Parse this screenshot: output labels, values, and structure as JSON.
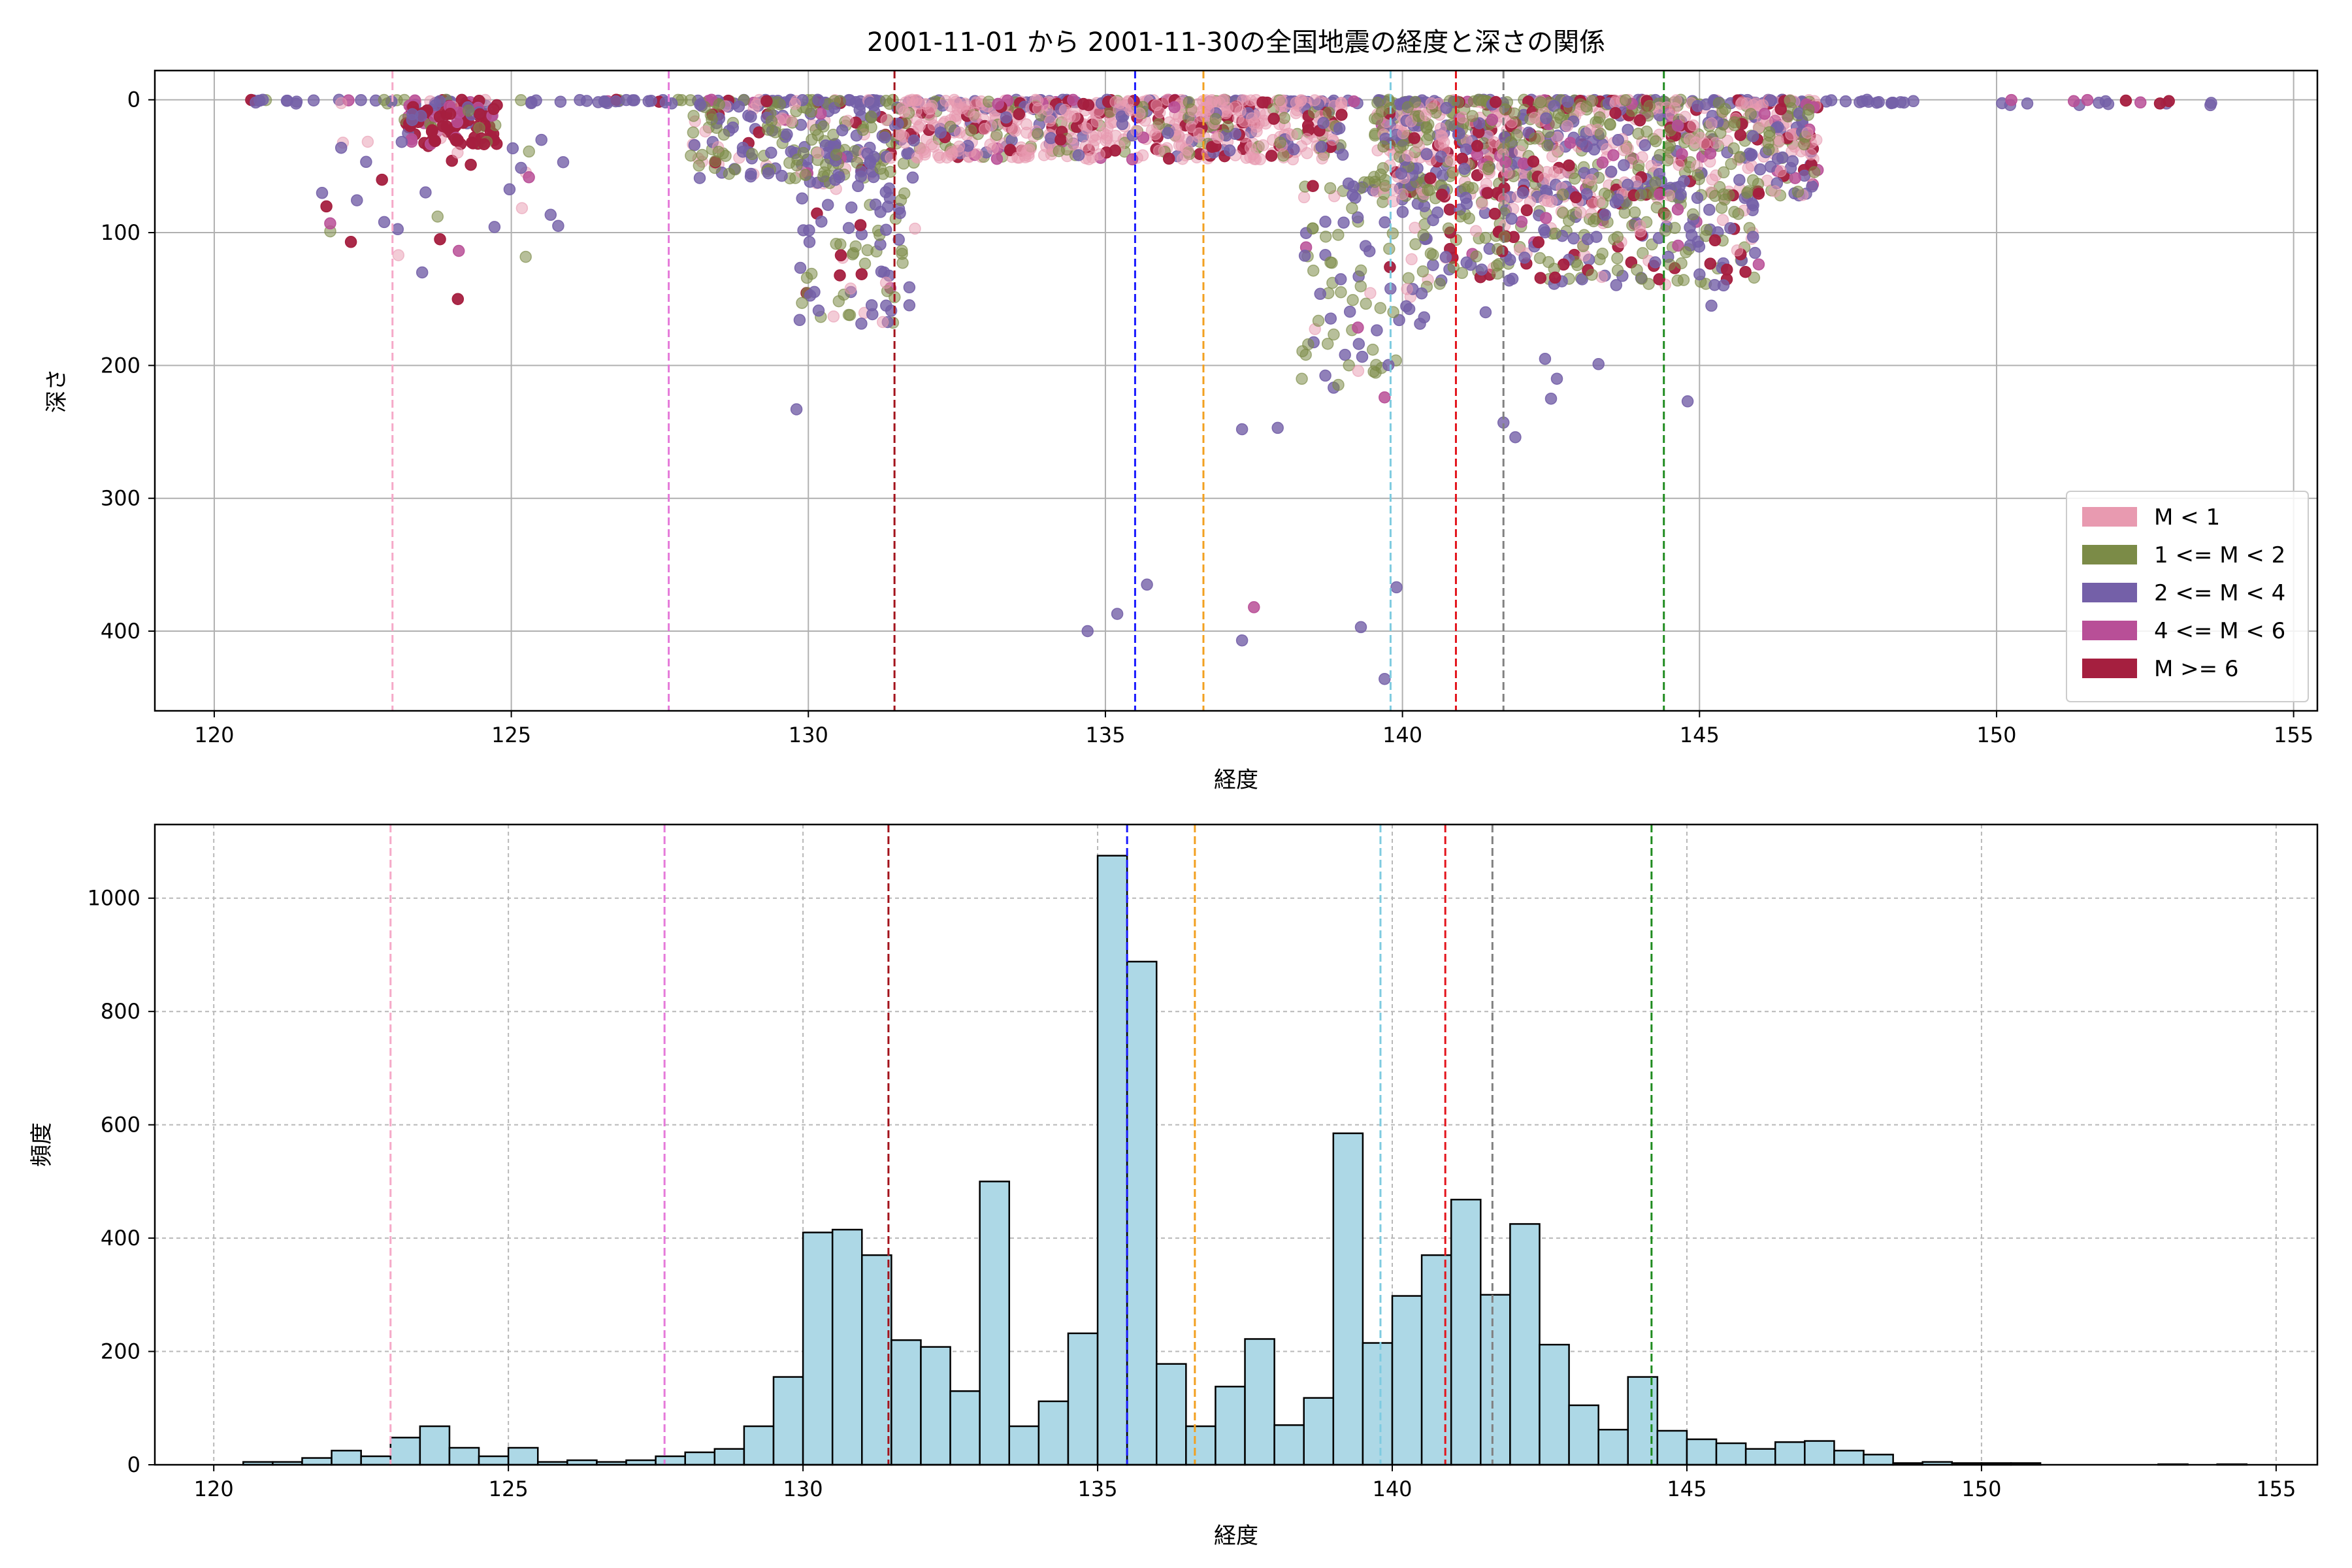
{
  "chart_data": [
    {
      "type": "scatter",
      "title": "2001-11-01 から 2001-11-30の全国地震の経度と深さの関係",
      "xlabel": "経度",
      "ylabel": "深さ",
      "xlim": [
        119,
        155.4
      ],
      "ylim": [
        460,
        -22
      ],
      "y_inverted": true,
      "xticks": [
        120,
        125,
        130,
        135,
        140,
        145,
        150,
        155
      ],
      "yticks": [
        0,
        100,
        200,
        300,
        400
      ],
      "grid": true,
      "legend_position": "lower-right",
      "legend": [
        {
          "label": "M < 1",
          "color": "#e89ab0"
        },
        {
          "label": "1 <= M < 2",
          "color": "#7b8b47"
        },
        {
          "label": "2 <= M < 4",
          "color": "#7460a8"
        },
        {
          "label": "4 <= M < 6",
          "color": "#b84f97"
        },
        {
          "label": "M >= 6",
          "color": "#a51f3f"
        }
      ],
      "reference_lines": [
        {
          "x": 123.0,
          "color": "#f5a9c8"
        },
        {
          "x": 127.65,
          "color": "#e57ad9"
        },
        {
          "x": 131.45,
          "color": "#a3131c"
        },
        {
          "x": 135.5,
          "color": "#1a1aff"
        },
        {
          "x": 136.65,
          "color": "#f2a020"
        },
        {
          "x": 139.8,
          "color": "#7ecbe0"
        },
        {
          "x": 140.9,
          "color": "#e3141c"
        },
        {
          "x": 141.7,
          "color": "#808080"
        },
        {
          "x": 144.4,
          "color": "#1f8b1f"
        }
      ],
      "clusters": [
        {
          "x": [
            120.5,
            148.5
          ],
          "y": [
            0,
            3
          ],
          "n": 260,
          "cls": [
            0.05,
            0.15,
            0.7,
            0.05,
            0.05
          ]
        },
        {
          "x": [
            123.2,
            124.8
          ],
          "y": [
            0,
            35
          ],
          "n": 120,
          "cls": [
            0.05,
            0.05,
            0.1,
            0.2,
            0.6
          ]
        },
        {
          "x": [
            121.8,
            126
          ],
          "y": [
            30,
            125
          ],
          "n": 35,
          "cls": [
            0.1,
            0.1,
            0.55,
            0.1,
            0.15
          ]
        },
        {
          "x": [
            128,
            131.5
          ],
          "y": [
            0,
            60
          ],
          "n": 220,
          "cls": [
            0.15,
            0.35,
            0.4,
            0.03,
            0.07
          ]
        },
        {
          "x": [
            129.8,
            131.8
          ],
          "y": [
            40,
            170
          ],
          "n": 120,
          "cls": [
            0.1,
            0.4,
            0.45,
            0.02,
            0.03
          ]
        },
        {
          "x": [
            131.5,
            139
          ],
          "y": [
            0,
            45
          ],
          "n": 700,
          "cls": [
            0.6,
            0.15,
            0.12,
            0.03,
            0.1
          ]
        },
        {
          "x": [
            138.3,
            140.5
          ],
          "y": [
            60,
            220
          ],
          "n": 120,
          "cls": [
            0.1,
            0.5,
            0.35,
            0.02,
            0.03
          ]
        },
        {
          "x": [
            139.5,
            147
          ],
          "y": [
            0,
            75
          ],
          "n": 850,
          "cls": [
            0.3,
            0.35,
            0.2,
            0.05,
            0.1
          ]
        },
        {
          "x": [
            140.5,
            146
          ],
          "y": [
            70,
            140
          ],
          "n": 280,
          "cls": [
            0.2,
            0.35,
            0.25,
            0.05,
            0.15
          ]
        },
        {
          "x": [
            149.5,
            153.7
          ],
          "y": [
            0,
            4
          ],
          "n": 14,
          "cls": [
            0,
            0,
            0.4,
            0.3,
            0.3
          ]
        }
      ],
      "points": [
        {
          "x": 122.3,
          "y": 107,
          "cls": 4
        },
        {
          "x": 123.1,
          "y": 117,
          "cls": 0
        },
        {
          "x": 123.5,
          "y": 130,
          "cls": 2
        },
        {
          "x": 123.8,
          "y": 105,
          "cls": 4
        },
        {
          "x": 124.1,
          "y": 150,
          "cls": 4
        },
        {
          "x": 129.8,
          "y": 233,
          "cls": 2
        },
        {
          "x": 134.7,
          "y": 400,
          "cls": 2
        },
        {
          "x": 135.2,
          "y": 387,
          "cls": 2
        },
        {
          "x": 135.7,
          "y": 365,
          "cls": 2
        },
        {
          "x": 137.3,
          "y": 248,
          "cls": 2
        },
        {
          "x": 137.5,
          "y": 382,
          "cls": 3
        },
        {
          "x": 137.3,
          "y": 407,
          "cls": 2
        },
        {
          "x": 137.9,
          "y": 247,
          "cls": 2
        },
        {
          "x": 139.3,
          "y": 397,
          "cls": 2
        },
        {
          "x": 139.7,
          "y": 436,
          "cls": 2
        },
        {
          "x": 139.9,
          "y": 367,
          "cls": 2
        },
        {
          "x": 139.7,
          "y": 224,
          "cls": 3
        },
        {
          "x": 141.7,
          "y": 243,
          "cls": 2
        },
        {
          "x": 141.9,
          "y": 254,
          "cls": 2
        },
        {
          "x": 142.4,
          "y": 195,
          "cls": 2
        },
        {
          "x": 142.5,
          "y": 225,
          "cls": 2
        },
        {
          "x": 143.3,
          "y": 199,
          "cls": 2
        },
        {
          "x": 144.8,
          "y": 227,
          "cls": 2
        },
        {
          "x": 142.6,
          "y": 210,
          "cls": 2
        },
        {
          "x": 141.4,
          "y": 160,
          "cls": 2
        },
        {
          "x": 145.2,
          "y": 155,
          "cls": 2
        },
        {
          "x": 153.6,
          "y": 4,
          "cls": 2
        },
        {
          "x": 152.9,
          "y": 1,
          "cls": 4
        },
        {
          "x": 151.3,
          "y": 1,
          "cls": 3
        },
        {
          "x": 148.6,
          "y": 1,
          "cls": 2
        }
      ]
    },
    {
      "type": "bar",
      "title": "",
      "xlabel": "経度",
      "ylabel": "頻度",
      "xlim": [
        119,
        155.7
      ],
      "ylim": [
        0,
        1130
      ],
      "xticks": [
        120,
        125,
        130,
        135,
        140,
        145,
        150,
        155
      ],
      "yticks": [
        0,
        200,
        400,
        600,
        800,
        1000
      ],
      "grid": true,
      "bar_color": "#add8e6",
      "bin_start": 120.5,
      "bin_width": 0.5,
      "values": [
        5,
        5,
        12,
        25,
        15,
        48,
        68,
        30,
        15,
        30,
        5,
        8,
        5,
        8,
        15,
        22,
        28,
        68,
        155,
        410,
        415,
        370,
        220,
        208,
        130,
        500,
        68,
        112,
        232,
        1075,
        888,
        178,
        68,
        138,
        222,
        70,
        118,
        585,
        215,
        298,
        370,
        468,
        300,
        425,
        212,
        105,
        62,
        155,
        60,
        45,
        38,
        28,
        40,
        42,
        25,
        18,
        3,
        5,
        3,
        3,
        3,
        0,
        0,
        0,
        0,
        1,
        0,
        1,
        0,
        0,
        0,
        0,
        1
      ],
      "reference_lines": [
        {
          "x": 123.0,
          "color": "#f5a9c8"
        },
        {
          "x": 127.65,
          "color": "#e57ad9"
        },
        {
          "x": 131.45,
          "color": "#a3131c"
        },
        {
          "x": 135.5,
          "color": "#1a1aff"
        },
        {
          "x": 136.65,
          "color": "#f2a020"
        },
        {
          "x": 139.8,
          "color": "#7ecbe0"
        },
        {
          "x": 140.9,
          "color": "#e3141c"
        },
        {
          "x": 141.7,
          "color": "#808080"
        },
        {
          "x": 144.4,
          "color": "#1f8b1f"
        }
      ]
    }
  ]
}
